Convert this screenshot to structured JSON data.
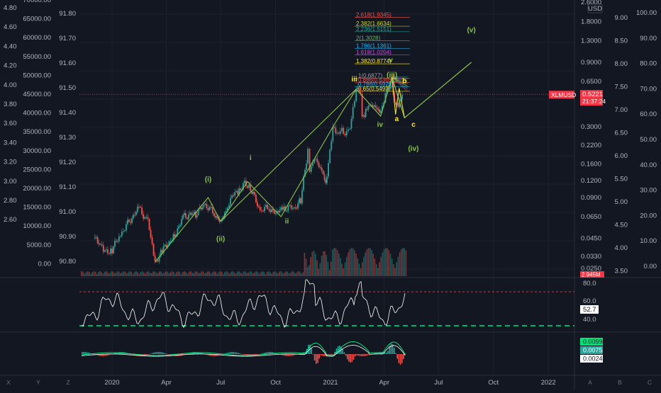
{
  "chart_data": {
    "type": "line",
    "symbol": "XLMUSD",
    "currency": "USD",
    "last_price": "0.5221",
    "countdown": "21:37:24",
    "volume_label": "2.945M",
    "x_axis": {
      "labels": [
        "2020",
        "Apr",
        "Jul",
        "Oct",
        "2021",
        "Apr",
        "Jul",
        "Oct",
        "2022"
      ]
    },
    "scales": {
      "far_left": [
        "4.80",
        "4.60",
        "4.40",
        "4.20",
        "4.00",
        "3.80",
        "3.60",
        "3.40",
        "3.20",
        "3.00",
        "2.80",
        "2.60"
      ],
      "left_2": [
        "70000.00",
        "65000.00",
        "60000.00",
        "55000.00",
        "50000.00",
        "45000.00",
        "40000.00",
        "35000.00",
        "30000.00",
        "25000.00",
        "20000.00",
        "15000.00",
        "10000.00",
        "5000.00",
        "0.00"
      ],
      "left_3": [
        "91.80",
        "91.70",
        "91.60",
        "91.50",
        "91.40",
        "91.30",
        "91.20",
        "91.10",
        "91.00",
        "90.90",
        "90.80"
      ],
      "main_log": [
        "2.6000",
        "1.8000",
        "1.3000",
        "0.9000",
        "0.6500",
        "0.4500",
        "0.3000",
        "0.2200",
        "0.1600",
        "0.1200",
        "0.0900",
        "0.0650",
        "0.0450",
        "0.0330",
        "0.0250"
      ],
      "right_4": [
        "9.00",
        "8.50",
        "8.00",
        "7.50",
        "7.00",
        "6.50",
        "6.00",
        "5.50",
        "5.00",
        "4.50",
        "4.00",
        "3.50"
      ],
      "right_5": [
        "100.00",
        "90.00",
        "80.00",
        "70.00",
        "60.00",
        "50.00",
        "40.00",
        "30.00",
        "20.00",
        "10.00",
        "0.00"
      ]
    },
    "price_series": [
      {
        "t": "2019-12-01",
        "v": 0.046
      },
      {
        "t": "2019-12-10",
        "v": 0.041
      },
      {
        "t": "2019-12-20",
        "v": 0.036
      },
      {
        "t": "2020-01-01",
        "v": 0.037
      },
      {
        "t": "2020-01-15",
        "v": 0.048
      },
      {
        "t": "2020-02-01",
        "v": 0.062
      },
      {
        "t": "2020-02-15",
        "v": 0.075
      },
      {
        "t": "2020-03-01",
        "v": 0.06
      },
      {
        "t": "2020-03-13",
        "v": 0.03
      },
      {
        "t": "2020-03-25",
        "v": 0.036
      },
      {
        "t": "2020-04-15",
        "v": 0.048
      },
      {
        "t": "2020-05-01",
        "v": 0.066
      },
      {
        "t": "2020-05-20",
        "v": 0.068
      },
      {
        "t": "2020-06-05",
        "v": 0.08
      },
      {
        "t": "2020-06-20",
        "v": 0.068
      },
      {
        "t": "2020-07-01",
        "v": 0.06
      },
      {
        "t": "2020-07-10",
        "v": 0.07
      },
      {
        "t": "2020-07-20",
        "v": 0.092
      },
      {
        "t": "2020-08-01",
        "v": 0.102
      },
      {
        "t": "2020-08-10",
        "v": 0.118
      },
      {
        "t": "2020-08-20",
        "v": 0.105
      },
      {
        "t": "2020-09-05",
        "v": 0.072
      },
      {
        "t": "2020-09-20",
        "v": 0.076
      },
      {
        "t": "2020-10-01",
        "v": 0.068
      },
      {
        "t": "2020-10-15",
        "v": 0.076
      },
      {
        "t": "2020-11-01",
        "v": 0.075
      },
      {
        "t": "2020-11-12",
        "v": 0.085
      },
      {
        "t": "2020-11-24",
        "v": 0.2
      },
      {
        "t": "2020-11-27",
        "v": 0.14
      },
      {
        "t": "2020-12-05",
        "v": 0.18
      },
      {
        "t": "2020-12-15",
        "v": 0.145
      },
      {
        "t": "2020-12-22",
        "v": 0.13
      },
      {
        "t": "2020-12-24",
        "v": 0.11
      },
      {
        "t": "2020-12-26",
        "v": 0.13
      },
      {
        "t": "2021-01-05",
        "v": 0.3
      },
      {
        "t": "2021-01-12",
        "v": 0.27
      },
      {
        "t": "2021-01-20",
        "v": 0.28
      },
      {
        "t": "2021-01-28",
        "v": 0.26
      },
      {
        "t": "2021-02-05",
        "v": 0.33
      },
      {
        "t": "2021-02-13",
        "v": 0.57
      },
      {
        "t": "2021-02-20",
        "v": 0.52
      },
      {
        "t": "2021-02-23",
        "v": 0.34
      },
      {
        "t": "2021-03-01",
        "v": 0.4
      },
      {
        "t": "2021-03-10",
        "v": 0.43
      },
      {
        "t": "2021-03-20",
        "v": 0.41
      },
      {
        "t": "2021-03-26",
        "v": 0.37
      },
      {
        "t": "2021-04-03",
        "v": 0.52
      },
      {
        "t": "2021-04-10",
        "v": 0.6
      },
      {
        "t": "2021-04-14",
        "v": 0.7
      },
      {
        "t": "2021-04-18",
        "v": 0.46
      },
      {
        "t": "2021-04-25",
        "v": 0.43
      },
      {
        "t": "2021-05-01",
        "v": 0.52
      }
    ],
    "wave_labels": [
      {
        "text": "(i)",
        "color": "#8bc34a",
        "t": "2020-06-10",
        "v": 0.118
      },
      {
        "text": "(ii)",
        "color": "#8bc34a",
        "t": "2020-07-01",
        "v": 0.043
      },
      {
        "text": "i",
        "color": "#8bc34a",
        "t": "2020-08-20",
        "v": 0.17
      },
      {
        "text": "ii",
        "color": "#8bc34a",
        "t": "2020-10-20",
        "v": 0.058
      },
      {
        "text": "iii",
        "color": "#ffeb3b",
        "t": "2021-02-10",
        "v": 0.65
      },
      {
        "text": "iv",
        "color": "#8bc34a",
        "t": "2021-03-25",
        "v": 0.3
      },
      {
        "text": "v",
        "color": "#8bc34a",
        "t": "2021-04-12",
        "v": 0.9
      },
      {
        "text": "(iii)",
        "color": "#8bc34a",
        "t": "2021-04-14",
        "v": 0.7
      },
      {
        "text": "a",
        "color": "#ffeb3b",
        "t": "2021-04-22",
        "v": 0.33
      },
      {
        "text": "b",
        "color": "#ffeb3b",
        "t": "2021-05-05",
        "v": 0.63
      },
      {
        "text": "c",
        "color": "#ffeb3b",
        "t": "2021-05-20",
        "v": 0.3
      },
      {
        "text": "(iv)",
        "color": "#8bc34a",
        "t": "2021-05-20",
        "v": 0.2
      },
      {
        "text": "(v)",
        "color": "#8bc34a",
        "t": "2021-08-25",
        "v": 1.5
      }
    ],
    "fib_levels": [
      {
        "text": "2.618(1.9345)",
        "color": "#ef5350",
        "v": 1.9345
      },
      {
        "text": "2.382(1.6634)",
        "color": "#cddc39",
        "v": 1.6634
      },
      {
        "text": "2.236(1.5151)",
        "color": "#26a69a",
        "v": 1.5151
      },
      {
        "text": "2(1.3028)",
        "color": "#66bb6a",
        "v": 1.3028
      },
      {
        "text": "1.786(1.1361)",
        "color": "#29b6f6",
        "v": 1.1361
      },
      {
        "text": "1.618(1.0204)",
        "color": "#e040fb",
        "v": 1.0204
      },
      {
        "text": "1.382(0.8774)",
        "color": "#ffeb3b",
        "v": 0.8774
      },
      {
        "text": "1(0.6877)",
        "color": "#9e9e9e",
        "v": 0.6877
      },
      {
        "text": "0.886(0.6365)",
        "color": "#ef5350",
        "v": 0.6365
      },
      {
        "text": "0.786(0.5925)",
        "color": "#29b6f6",
        "v": 0.5925
      },
      {
        "text": "0.65(0.5493)",
        "color": "#ffeb3b",
        "v": 0.5493
      }
    ],
    "rsi": {
      "levels": [
        "80.0",
        "60.0",
        "40.0"
      ],
      "value": "52.7"
    },
    "macd": {
      "values": [
        "0.0099",
        "0.0075",
        "0.0024"
      ]
    },
    "bottom_buttons": [
      "X",
      "Y",
      "Z",
      "A",
      "B",
      "C"
    ]
  },
  "colors": {
    "up": "#26a69a",
    "down": "#ef5350",
    "wave": "#8bc34a",
    "rsi": "#ffffff",
    "dash": "#00e676",
    "price_tag": "#f23645"
  }
}
